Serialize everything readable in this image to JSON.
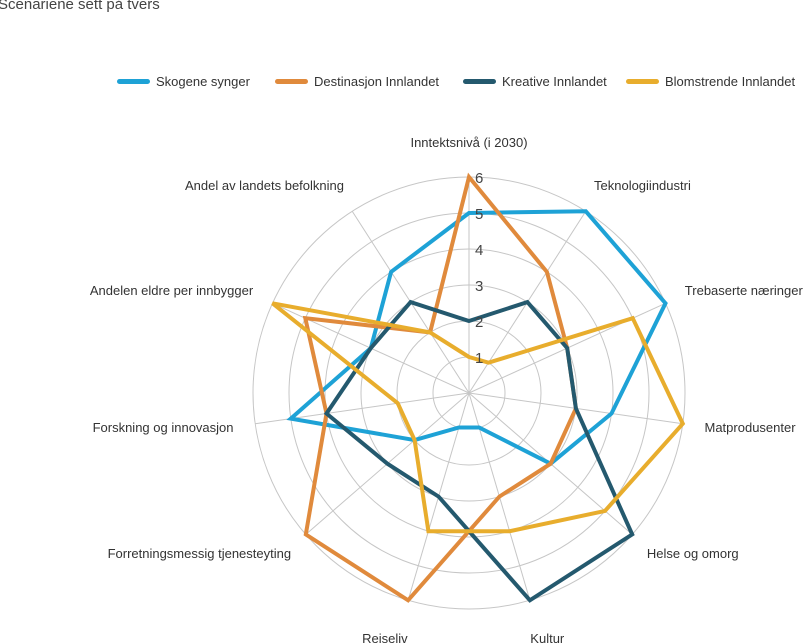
{
  "chart_data": {
    "type": "radar",
    "title": "Scenariene sett på tvers",
    "axes": [
      "Inntektsnivå (i 2030)",
      "Teknologiindustri",
      "Trebaserte næringer",
      "Matprodusenter",
      "Helse og omorg",
      "Kultur",
      "Reiseliv",
      "Forretningsmessig tjenesteyting",
      "Forskning og innovasjon",
      "Andelen eldre per innbygger",
      "Andel av landets befolkning"
    ],
    "r_ticks": [
      "1",
      "2",
      "3",
      "4",
      "5",
      "6"
    ],
    "rlim": [
      0,
      6
    ],
    "grid": true,
    "legend_position": "top",
    "series": [
      {
        "name": "Skogene synger",
        "color": "#1ea2d6",
        "values": [
          5,
          6,
          6,
          4,
          3,
          1,
          1,
          2,
          5,
          3,
          4
        ]
      },
      {
        "name": "Destinasjon Innlandet",
        "color": "#e08a3c",
        "values": [
          6,
          4,
          3,
          3,
          3,
          3,
          6,
          6,
          4,
          5,
          2
        ]
      },
      {
        "name": "Kreative Innlandet",
        "color": "#24596e",
        "values": [
          2,
          3,
          3,
          3,
          6,
          6,
          3,
          3,
          4,
          3,
          3
        ]
      },
      {
        "name": "Blomstrende Innlandet",
        "color": "#e8ad2d",
        "values": [
          1,
          1,
          5,
          6,
          5,
          4,
          4,
          2,
          2,
          6,
          2
        ]
      }
    ]
  }
}
